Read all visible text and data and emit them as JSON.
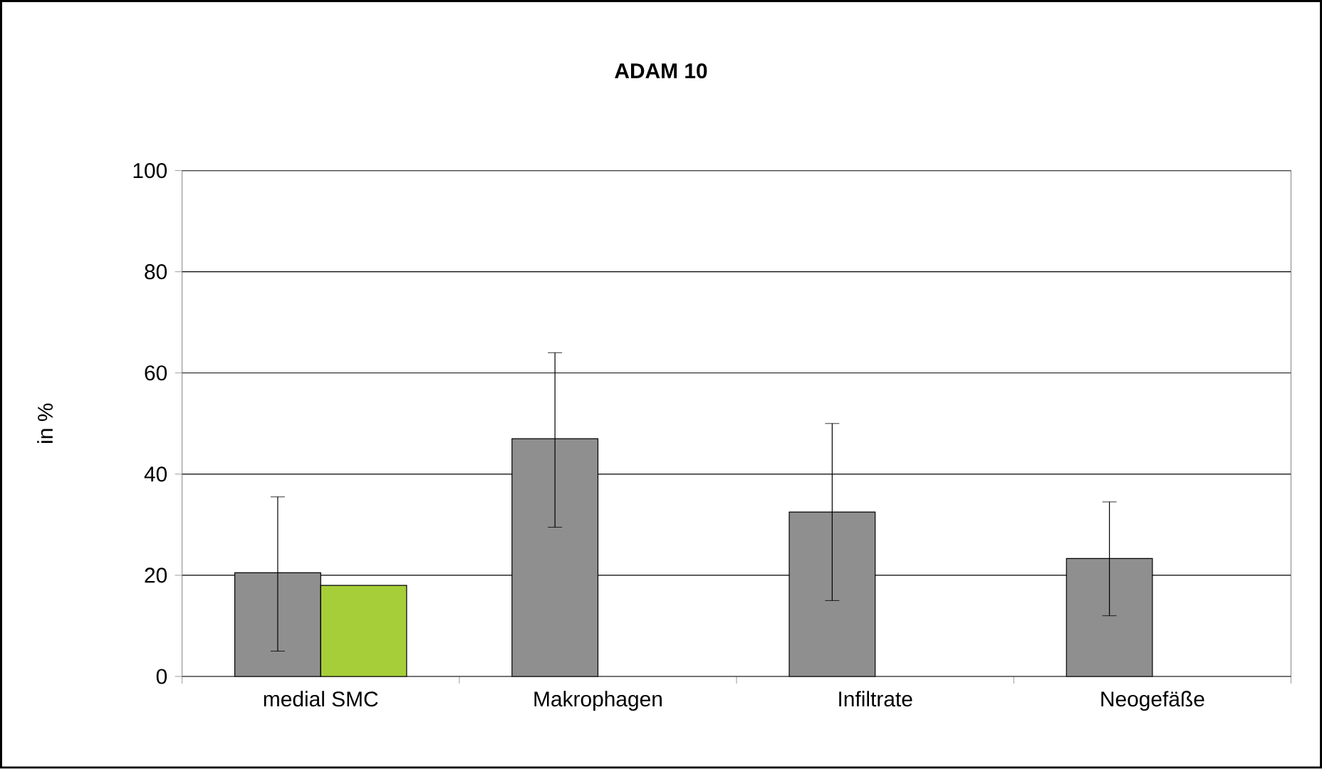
{
  "chart_data": {
    "type": "bar",
    "title": "ADAM 10",
    "ylabel": "in %",
    "categories": [
      "medial SMC",
      "Makrophagen",
      "Infiltrate",
      "Neogefäße"
    ],
    "series": [
      {
        "color": "#8f8f8f",
        "values": [
          20.5,
          47,
          32.5,
          23.3
        ],
        "errors": [
          [
            5,
            35.5
          ],
          [
            29.5,
            64
          ],
          [
            15,
            50
          ],
          [
            12,
            34.5
          ]
        ]
      },
      {
        "color": "#a6ce39",
        "values": [
          18,
          null,
          null,
          null
        ]
      }
    ],
    "ylim": [
      0,
      100
    ],
    "yticks": [
      0,
      20,
      40,
      60,
      80,
      100
    ],
    "grid": "y"
  }
}
